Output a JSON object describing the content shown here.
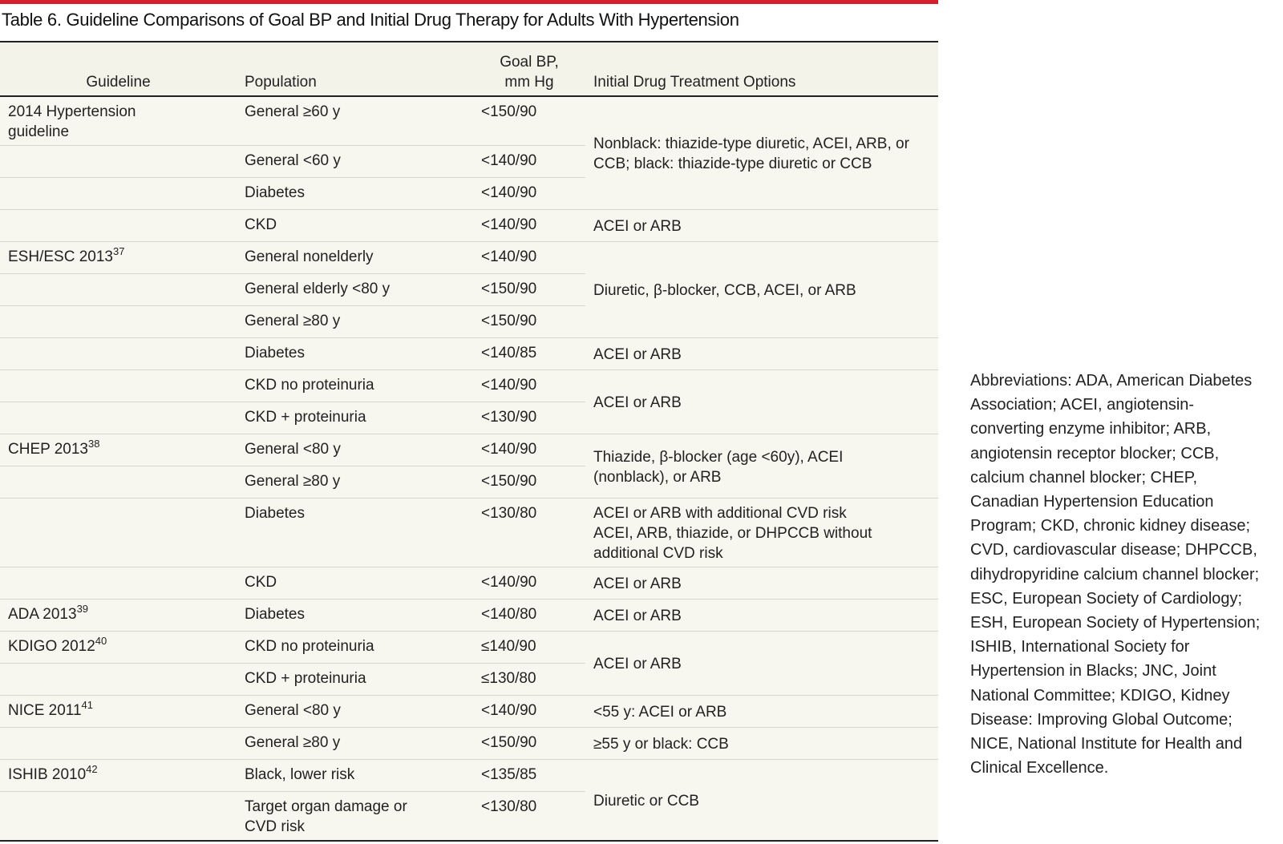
{
  "title": "Table 6. Guideline Comparisons of Goal BP and Initial Drug Therapy for Adults With Hypertension",
  "table": {
    "columns": [
      "Guideline",
      "Population",
      "Goal BP, mm Hg",
      "Initial Drug Treatment Options"
    ],
    "groups": [
      {
        "treatment": [
          "Nonblack: thiazide-type diuretic, ACEI, ARB, or CCB; black: thiazide-type diuretic or CCB"
        ],
        "rows": [
          {
            "guideline": "2014 Hypertension guideline",
            "population": "General ≥60 y",
            "goal": "<150/90"
          },
          {
            "population": "General <60 y",
            "goal": "<140/90"
          },
          {
            "population": "Diabetes",
            "goal": "<140/90"
          }
        ]
      },
      {
        "treatment": [
          "ACEI or ARB"
        ],
        "rows": [
          {
            "population": "CKD",
            "goal": "<140/90"
          }
        ]
      },
      {
        "treatment": [
          "Diuretic, β-blocker, CCB, ACEI, or ARB"
        ],
        "rows": [
          {
            "guideline": "ESH/ESC 2013",
            "ref": "37",
            "population": "General nonelderly",
            "goal": "<140/90"
          },
          {
            "population": "General elderly <80 y",
            "goal": "<150/90"
          },
          {
            "population": "General ≥80 y",
            "goal": "<150/90"
          }
        ]
      },
      {
        "treatment": [
          "ACEI or ARB"
        ],
        "rows": [
          {
            "population": "Diabetes",
            "goal": "<140/85"
          }
        ]
      },
      {
        "treatment": [
          "ACEI or ARB"
        ],
        "rows": [
          {
            "population": "CKD no proteinuria",
            "goal": "<140/90"
          },
          {
            "population": "CKD + proteinuria",
            "goal": "<130/90"
          }
        ]
      },
      {
        "treatment": [
          "Thiazide, β-blocker (age <60y), ACEI (nonblack), or ARB"
        ],
        "rows": [
          {
            "guideline": "CHEP 2013",
            "ref": "38",
            "population": "General <80 y",
            "goal": "<140/90"
          },
          {
            "population": "General ≥80 y",
            "goal": "<150/90"
          }
        ]
      },
      {
        "treatment": [
          "ACEI or ARB with additional CVD risk",
          "ACEI, ARB, thiazide, or DHPCCB without additional CVD risk"
        ],
        "rows": [
          {
            "population": "Diabetes",
            "goal": "<130/80"
          }
        ]
      },
      {
        "treatment": [
          "ACEI or ARB"
        ],
        "rows": [
          {
            "population": "CKD",
            "goal": "<140/90"
          }
        ]
      },
      {
        "treatment": [
          "ACEI or ARB"
        ],
        "rows": [
          {
            "guideline": "ADA 2013",
            "ref": "39",
            "population": "Diabetes",
            "goal": "<140/80"
          }
        ]
      },
      {
        "treatment": [
          "ACEI or ARB"
        ],
        "rows": [
          {
            "guideline": "KDIGO 2012",
            "ref": "40",
            "population": "CKD no proteinuria",
            "goal": "≤140/90"
          },
          {
            "population": "CKD + proteinuria",
            "goal": "≤130/80"
          }
        ]
      },
      {
        "treatment": [
          "<55 y: ACEI or ARB"
        ],
        "rows": [
          {
            "guideline": "NICE 2011",
            "ref": "41",
            "population": "General <80 y",
            "goal": "<140/90"
          }
        ]
      },
      {
        "treatment": [
          "≥55 y or black: CCB"
        ],
        "rows": [
          {
            "population": "General ≥80 y",
            "goal": "<150/90"
          }
        ]
      },
      {
        "treatment": [
          "Diuretic or CCB"
        ],
        "rows": [
          {
            "guideline": "ISHIB 2010",
            "ref": "42",
            "population": "Black, lower risk",
            "goal": "<135/85"
          },
          {
            "population": "Target organ damage or CVD risk",
            "goal": "<130/80"
          }
        ]
      }
    ]
  },
  "note": "Abbreviations: ADA, American Diabetes Association; ACEI, angiotensin-converting enzyme inhibitor; ARB, angiotensin receptor blocker; CCB, calcium channel blocker; CHEP, Canadian Hypertension Education Program; CKD, chronic kidney disease; CVD, cardiovascular disease; DHPCCB, dihydropyridine calcium channel blocker; ESC, European Society of Cardiology; ESH, European Society of Hypertension; ISHIB, International Society for Hypertension in Blacks; JNC, Joint National Committee; KDIGO, Kidney Disease: Improving Global Outcome; NICE, National Institute for Health and Clinical Excellence."
}
